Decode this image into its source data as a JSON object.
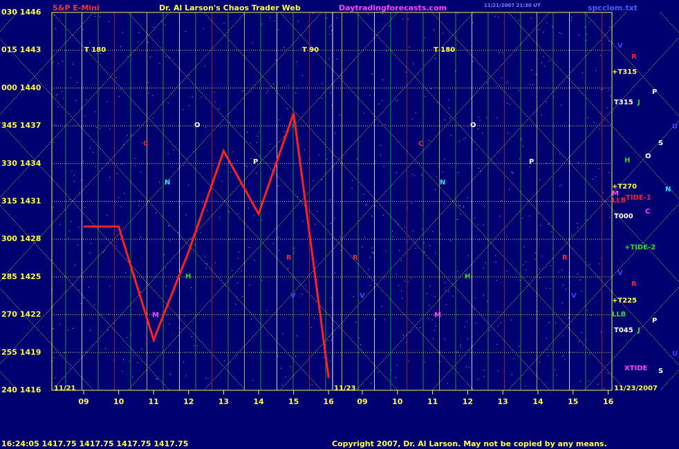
{
  "chart_data": {
    "type": "line",
    "title": "Dr. Al Larson's Chaos Trader Web",
    "symbol": "S&P E-Mini",
    "site": "Daytradingforecasts.com",
    "file": "spcclom.txt",
    "timestamp": "11/21/2007 21:30 UT",
    "categories": [
      "09",
      "10",
      "11",
      "12",
      "13",
      "14",
      "15",
      "16",
      "09",
      "10",
      "11",
      "12",
      "13",
      "14",
      "15",
      "16"
    ],
    "series": [
      {
        "name": "S&P E-Mini",
        "color": "#ff2020",
        "values": [
          1429,
          1429,
          1420,
          1427,
          1435,
          1430,
          1438,
          1417,
          null,
          null,
          null,
          null,
          null,
          null,
          null,
          null
        ]
      }
    ],
    "ylim": [
      1416,
      1446
    ],
    "yticks": [
      {
        "value": 1446,
        "label": "030 1446"
      },
      {
        "value": 1443,
        "label": "015 1443"
      },
      {
        "value": 1440,
        "label": "000 1440"
      },
      {
        "value": 1437,
        "label": "345 1437"
      },
      {
        "value": 1434,
        "label": "330 1434"
      },
      {
        "value": 1431,
        "label": "315 1431"
      },
      {
        "value": 1428,
        "label": "300 1428"
      },
      {
        "value": 1425,
        "label": "285 1425"
      },
      {
        "value": 1422,
        "label": "270 1422"
      },
      {
        "value": 1419,
        "label": "255 1419"
      },
      {
        "value": 1416,
        "label": "240 1416"
      }
    ],
    "annotations": [
      "T 180",
      "T 90",
      "T 180",
      "11/21",
      "11/23",
      "11/23/2007",
      "V",
      "R",
      "+T315",
      "P",
      "T315",
      "J",
      "U",
      "S",
      "H",
      "O",
      "+T270",
      "N",
      "M",
      "TIDE-1",
      "LLB",
      "C",
      "T000",
      "+TIDE-2",
      "V",
      "R",
      "+T225",
      "LLB",
      "P",
      "J",
      "T045",
      "U",
      "XTIDE",
      "S",
      "C",
      "O",
      "N",
      "P",
      "O",
      "N",
      "C",
      "P",
      "R",
      "R",
      "R",
      "V",
      "V",
      "V",
      "H",
      "H",
      "M",
      "M"
    ],
    "status": "16:24:05  1417.75 1417.75 1417.75 1417.75",
    "copyright": "Copyright 2007, Dr. Al Larson. May not be copied by any means."
  }
}
